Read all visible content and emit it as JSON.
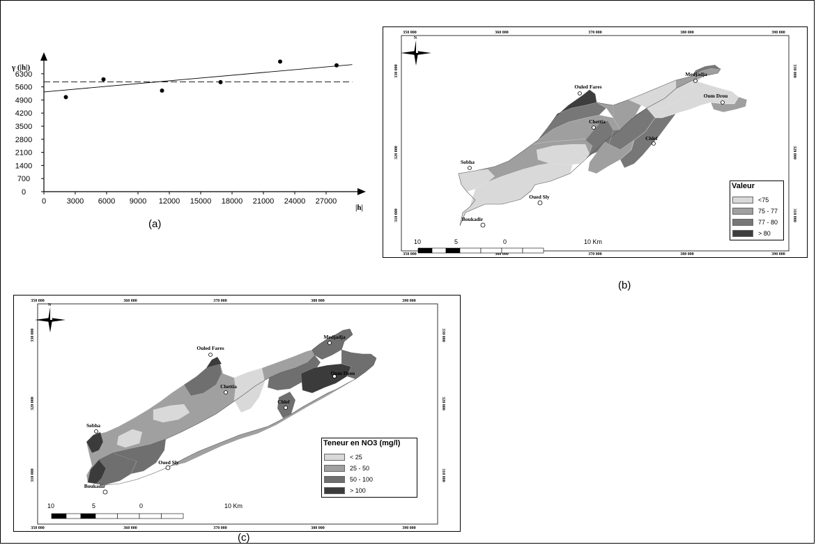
{
  "chart_data": [
    {
      "type": "scatter",
      "panel": "(a)",
      "ylabel": "γ (|h|)",
      "xlabel": "|h|",
      "x_ticks": [
        0,
        3000,
        6000,
        9000,
        12000,
        15000,
        18000,
        21000,
        24000,
        27000
      ],
      "y_ticks": [
        0,
        700,
        1400,
        2100,
        2800,
        3500,
        4200,
        4900,
        5600,
        6300
      ],
      "xlim": [
        0,
        30000
      ],
      "ylim": [
        0,
        7300
      ],
      "points": [
        {
          "x": 2100,
          "y": 5050
        },
        {
          "x": 5700,
          "y": 6000
        },
        {
          "x": 11300,
          "y": 5400
        },
        {
          "x": 16900,
          "y": 5850
        },
        {
          "x": 22600,
          "y": 6950
        },
        {
          "x": 28000,
          "y": 6750
        }
      ],
      "trend_line": [
        {
          "x": 0,
          "y": 5330
        },
        {
          "x": 29500,
          "y": 6790
        }
      ],
      "dashed_line": [
        {
          "x": 0,
          "y": 5870
        },
        {
          "x": 29500,
          "y": 5870
        }
      ],
      "grid": false
    },
    {
      "type": "heatmap",
      "panel": "(b)",
      "x_ticks": [
        "350 000",
        "360 000",
        "370 000",
        "380 000",
        "390 000"
      ],
      "y_ticks": [
        "330 000",
        "320 000",
        "310 000"
      ],
      "places": [
        "Ouled Fares",
        "Medjadja",
        "Oum Drou",
        "Chettia",
        "Chlef",
        "Sobha",
        "Oued Sly",
        "Boukadir"
      ],
      "legend": {
        "title": "Valeur",
        "position": "bottom-right",
        "items": [
          {
            "label": "<75",
            "color": "#d9d9d9"
          },
          {
            "label": "75 - 77",
            "color": "#9f9f9f"
          },
          {
            "label": "77 - 80",
            "color": "#777777"
          },
          {
            "label": "> 80",
            "color": "#3d3d3d"
          }
        ]
      },
      "scale_bar": [
        "10",
        "5",
        "0",
        "10 Km"
      ]
    },
    {
      "type": "heatmap",
      "panel": "(c)",
      "x_ticks": [
        "350 000",
        "360 000",
        "370 000",
        "380 000",
        "390 000"
      ],
      "y_ticks": [
        "330 000",
        "320 000",
        "310 000"
      ],
      "places": [
        "Ouled Fares",
        "Medjadja",
        "Oum Drou",
        "Chettia",
        "Chlef",
        "Sobha",
        "Oued Sly",
        "Boukadir"
      ],
      "legend": {
        "title": "Teneur en NO3 (mg/l)",
        "position": "bottom-right",
        "items": [
          {
            "label": "< 25",
            "color": "#d9d9d9"
          },
          {
            "label": "25 - 50",
            "color": "#a0a0a0"
          },
          {
            "label": "50 - 100",
            "color": "#6f6f6f"
          },
          {
            "label": "> 100",
            "color": "#3b3b3b"
          }
        ]
      },
      "scale_bar": [
        "10",
        "5",
        "0",
        "10 Km"
      ]
    }
  ],
  "labels": {
    "a": "(a)",
    "b": "(b)",
    "c": "(c)"
  }
}
